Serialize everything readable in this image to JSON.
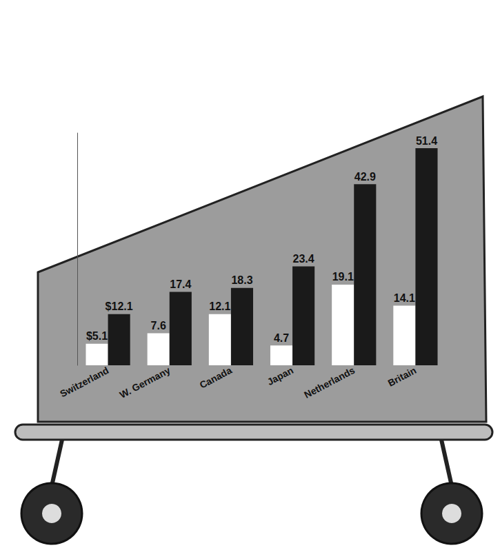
{
  "chart_data": {
    "type": "bar",
    "categories": [
      "Switzerland",
      "W. Germany",
      "Canada",
      "Japan",
      "Netherlands",
      "Britain"
    ],
    "series": [
      {
        "color": "#ffffff",
        "values": [
          5.1,
          7.6,
          12.1,
          4.7,
          19.1,
          14.1
        ],
        "value_labels": [
          "$5.1",
          "7.6",
          "12.1",
          "4.7",
          "19.1",
          "14.1"
        ]
      },
      {
        "color": "#1a1a1a",
        "values": [
          12.1,
          17.4,
          18.3,
          23.4,
          42.9,
          51.4
        ],
        "value_labels": [
          "$12.1",
          "17.4",
          "18.3",
          "23.4",
          "42.9",
          "51.4"
        ]
      }
    ],
    "ylim": [
      0,
      55
    ],
    "data_labels": true,
    "tick_labels": "x",
    "grid": false
  }
}
